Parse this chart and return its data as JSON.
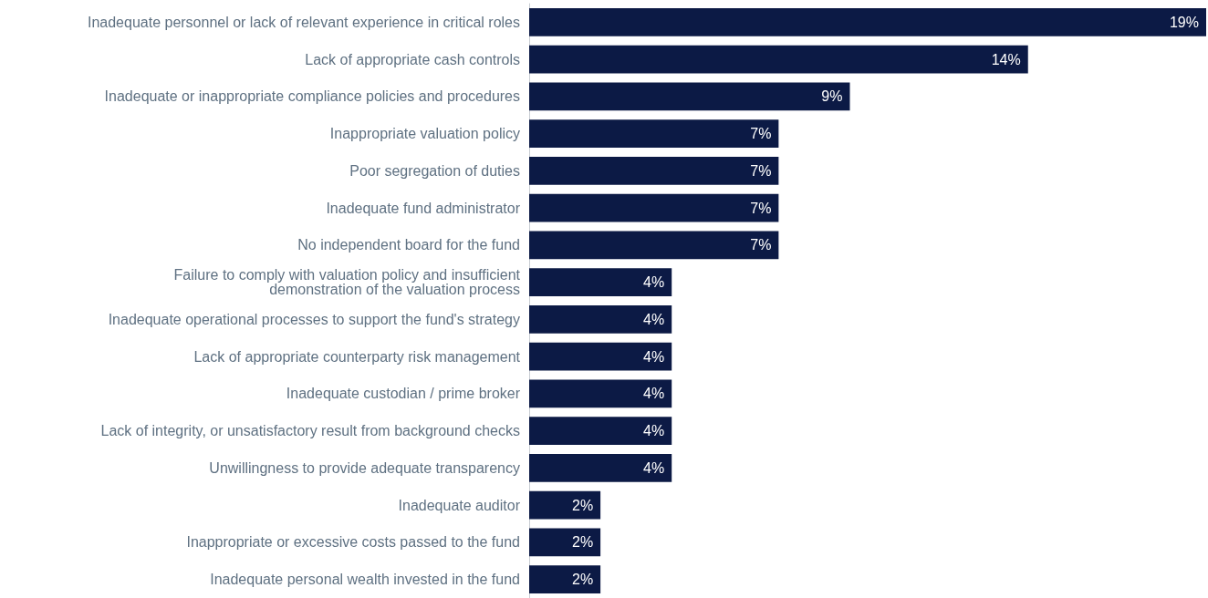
{
  "chart_data": {
    "type": "bar",
    "orientation": "horizontal",
    "categories": [
      "Inadequate personnel or lack of relevant experience in critical roles",
      "Lack of appropriate cash controls",
      "Inadequate or inappropriate compliance policies and procedures",
      "Inappropriate valuation policy",
      "Poor segregation of duties",
      "Inadequate fund administrator",
      "No independent board for the fund",
      "Failure to comply with valuation policy and insufficient\ndemonstration of the valuation process",
      "Inadequate operational processes to support the fund's strategy",
      "Lack of appropriate counterparty risk management",
      "Inadequate custodian / prime broker",
      "Lack of integrity, or unsatisfactory result from background checks",
      "Unwillingness to provide adequate transparency",
      "Inadequate auditor",
      "Inappropriate or excessive costs passed to the fund",
      "Inadequate personal wealth invested in the fund"
    ],
    "values": [
      19,
      14,
      9,
      7,
      7,
      7,
      7,
      4,
      4,
      4,
      4,
      4,
      4,
      2,
      2,
      2
    ],
    "value_labels": [
      "19%",
      "14%",
      "9%",
      "7%",
      "7%",
      "7%",
      "7%",
      "4%",
      "4%",
      "4%",
      "4%",
      "4%",
      "4%",
      "2%",
      "2%",
      "2%"
    ],
    "color": "#0c1a45"
  }
}
